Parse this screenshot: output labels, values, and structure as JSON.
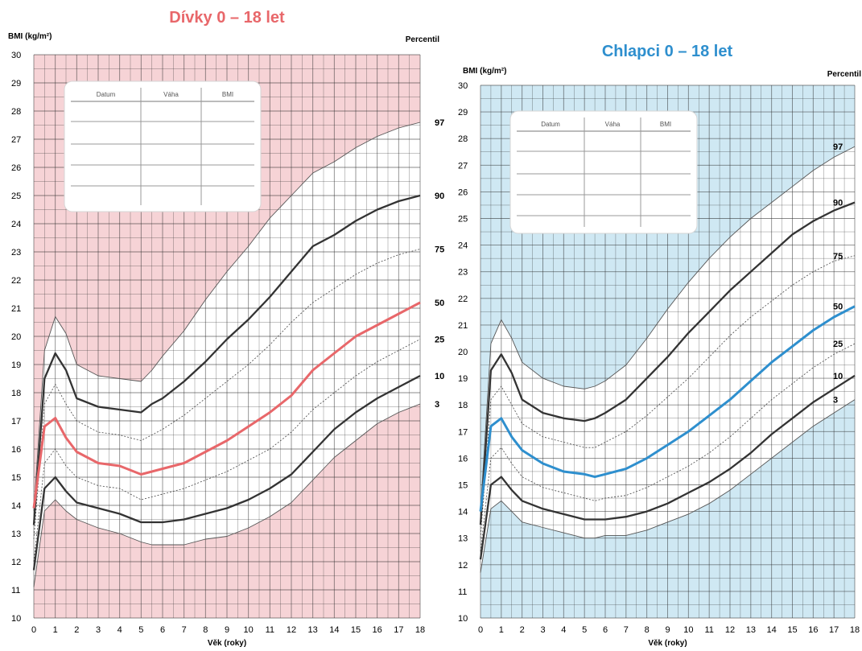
{
  "chart_data": [
    {
      "type": "line",
      "title": "Dívky 0 – 18 let",
      "ylabel": "BMI (kg/m²)",
      "xlabel": "Věk (roky)",
      "percentile_label": "Percentil",
      "xlim": [
        0,
        18
      ],
      "ylim": [
        10,
        30
      ],
      "x_ticks": [
        "0",
        "1",
        "2",
        "3",
        "4",
        "5",
        "6",
        "7",
        "8",
        "9",
        "10",
        "11",
        "12",
        "13",
        "14",
        "15",
        "16",
        "17",
        "18"
      ],
      "y_ticks": [
        "10",
        "11",
        "12",
        "13",
        "14",
        "15",
        "16",
        "17",
        "18",
        "19",
        "20",
        "21",
        "22",
        "23",
        "24",
        "25",
        "26",
        "27",
        "28",
        "29",
        "30"
      ],
      "grid": true,
      "background_color": "#f6d3d6",
      "highlight_color": "#e8676a",
      "table_headers": [
        "Datum",
        "Váha",
        "BMI"
      ],
      "series": [
        {
          "name": "97",
          "x": [
            0,
            0.5,
            1,
            1.5,
            2,
            3,
            4,
            5,
            5.5,
            6,
            7,
            8,
            9,
            10,
            11,
            12,
            13,
            14,
            15,
            16,
            17,
            18
          ],
          "values": [
            13.8,
            19.5,
            20.7,
            20.1,
            19,
            18.6,
            18.5,
            18.4,
            18.8,
            19.3,
            20.2,
            21.3,
            22.3,
            23.2,
            24.2,
            25,
            25.8,
            26.2,
            26.7,
            27.1,
            27.4,
            27.6
          ]
        },
        {
          "name": "90",
          "x": [
            0,
            0.5,
            1,
            1.5,
            2,
            3,
            4,
            5,
            5.5,
            6,
            7,
            8,
            9,
            10,
            11,
            12,
            13,
            14,
            15,
            16,
            17,
            18
          ],
          "values": [
            13.3,
            18.5,
            19.4,
            18.8,
            17.8,
            17.5,
            17.4,
            17.3,
            17.6,
            17.8,
            18.4,
            19.1,
            19.9,
            20.6,
            21.4,
            22.3,
            23.2,
            23.6,
            24.1,
            24.5,
            24.8,
            25
          ]
        },
        {
          "name": "75",
          "x": [
            0,
            0.5,
            1,
            1.5,
            2,
            3,
            4,
            5,
            5.5,
            6,
            7,
            8,
            9,
            10,
            11,
            12,
            13,
            14,
            15,
            16,
            17,
            18
          ],
          "values": [
            12.8,
            17.6,
            18.3,
            17.6,
            17,
            16.6,
            16.5,
            16.3,
            16.5,
            16.7,
            17.2,
            17.8,
            18.4,
            19,
            19.7,
            20.5,
            21.2,
            21.7,
            22.2,
            22.6,
            22.9,
            23.1
          ]
        },
        {
          "name": "50",
          "x": [
            0,
            0.5,
            1,
            1.5,
            2,
            3,
            4,
            5,
            5.5,
            6,
            7,
            8,
            9,
            10,
            11,
            12,
            13,
            14,
            15,
            16,
            17,
            18
          ],
          "values": [
            13.9,
            16.8,
            17.1,
            16.4,
            15.9,
            15.5,
            15.4,
            15.1,
            15.2,
            15.3,
            15.5,
            15.9,
            16.3,
            16.8,
            17.3,
            17.9,
            18.8,
            19.4,
            20,
            20.4,
            20.8,
            21.2
          ]
        },
        {
          "name": "25",
          "x": [
            0,
            0.5,
            1,
            1.5,
            2,
            3,
            4,
            5,
            5.5,
            6,
            7,
            8,
            9,
            10,
            11,
            12,
            13,
            14,
            15,
            16,
            17,
            18
          ],
          "values": [
            12,
            15.5,
            16,
            15.4,
            15,
            14.7,
            14.6,
            14.2,
            14.3,
            14.4,
            14.6,
            14.9,
            15.2,
            15.6,
            16,
            16.6,
            17.4,
            18,
            18.6,
            19.1,
            19.5,
            19.9
          ]
        },
        {
          "name": "10",
          "x": [
            0,
            0.5,
            1,
            1.5,
            2,
            3,
            4,
            5,
            5.5,
            6,
            7,
            8,
            9,
            10,
            11,
            12,
            13,
            14,
            15,
            16,
            17,
            18
          ],
          "values": [
            11.7,
            14.6,
            15,
            14.5,
            14.1,
            13.9,
            13.7,
            13.4,
            13.4,
            13.4,
            13.5,
            13.7,
            13.9,
            14.2,
            14.6,
            15.1,
            15.9,
            16.7,
            17.3,
            17.8,
            18.2,
            18.6
          ]
        },
        {
          "name": "3",
          "x": [
            0,
            0.5,
            1,
            1.5,
            2,
            3,
            4,
            5,
            5.5,
            6,
            7,
            8,
            9,
            10,
            11,
            12,
            13,
            14,
            15,
            16,
            17,
            18
          ],
          "values": [
            11.1,
            13.8,
            14.2,
            13.8,
            13.5,
            13.2,
            13,
            12.7,
            12.6,
            12.6,
            12.6,
            12.8,
            12.9,
            13.2,
            13.6,
            14.1,
            14.9,
            15.7,
            16.3,
            16.9,
            17.3,
            17.6
          ]
        }
      ]
    },
    {
      "type": "line",
      "title": "Chlapci 0 – 18 let",
      "ylabel": "BMI (kg/m²)",
      "xlabel": "Věk (roky)",
      "percentile_label": "Percentil",
      "xlim": [
        0,
        18
      ],
      "ylim": [
        10,
        30
      ],
      "x_ticks": [
        "0",
        "1",
        "2",
        "3",
        "4",
        "5",
        "6",
        "7",
        "8",
        "9",
        "10",
        "11",
        "12",
        "13",
        "14",
        "15",
        "16",
        "17",
        "18"
      ],
      "y_ticks": [
        "10",
        "11",
        "12",
        "13",
        "14",
        "15",
        "16",
        "17",
        "18",
        "19",
        "20",
        "21",
        "22",
        "23",
        "24",
        "25",
        "26",
        "27",
        "28",
        "29",
        "30"
      ],
      "grid": true,
      "background_color": "#cfe8f3",
      "highlight_color": "#2e8fce",
      "table_headers": [
        "Datum",
        "Váha",
        "BMI"
      ],
      "series": [
        {
          "name": "97",
          "x": [
            0,
            0.5,
            1,
            1.5,
            2,
            3,
            4,
            5,
            5.5,
            6,
            7,
            8,
            9,
            10,
            11,
            12,
            13,
            14,
            15,
            16,
            17,
            18
          ],
          "values": [
            14,
            20.3,
            21.2,
            20.5,
            19.6,
            19,
            18.7,
            18.6,
            18.7,
            18.9,
            19.5,
            20.5,
            21.6,
            22.6,
            23.5,
            24.3,
            25,
            25.6,
            26.2,
            26.8,
            27.3,
            27.7
          ]
        },
        {
          "name": "90",
          "x": [
            0,
            0.5,
            1,
            1.5,
            2,
            3,
            4,
            5,
            5.5,
            6,
            7,
            8,
            9,
            10,
            11,
            12,
            13,
            14,
            15,
            16,
            17,
            18
          ],
          "values": [
            13.5,
            19.3,
            19.9,
            19.2,
            18.2,
            17.7,
            17.5,
            17.4,
            17.5,
            17.7,
            18.2,
            19,
            19.8,
            20.7,
            21.5,
            22.3,
            23,
            23.7,
            24.4,
            24.9,
            25.3,
            25.6
          ]
        },
        {
          "name": "75",
          "x": [
            0,
            0.5,
            1,
            1.5,
            2,
            3,
            4,
            5,
            5.5,
            6,
            7,
            8,
            9,
            10,
            11,
            12,
            13,
            14,
            15,
            16,
            17,
            18
          ],
          "values": [
            13,
            18.2,
            18.7,
            18,
            17.3,
            16.8,
            16.6,
            16.4,
            16.4,
            16.6,
            17,
            17.6,
            18.3,
            19,
            19.8,
            20.6,
            21.3,
            21.9,
            22.5,
            23,
            23.4,
            23.6
          ]
        },
        {
          "name": "50",
          "x": [
            0,
            0.5,
            1,
            1.5,
            2,
            3,
            4,
            5,
            5.5,
            6,
            7,
            8,
            9,
            10,
            11,
            12,
            13,
            14,
            15,
            16,
            17,
            18
          ],
          "values": [
            14,
            17.2,
            17.5,
            16.8,
            16.3,
            15.8,
            15.5,
            15.4,
            15.3,
            15.4,
            15.6,
            16,
            16.5,
            17,
            17.6,
            18.2,
            18.9,
            19.6,
            20.2,
            20.8,
            21.3,
            21.7
          ]
        },
        {
          "name": "25",
          "x": [
            0,
            0.5,
            1,
            1.5,
            2,
            3,
            4,
            5,
            5.5,
            6,
            7,
            8,
            9,
            10,
            11,
            12,
            13,
            14,
            15,
            16,
            17,
            18
          ],
          "values": [
            12.5,
            16,
            16.4,
            15.8,
            15.3,
            14.9,
            14.7,
            14.5,
            14.4,
            14.5,
            14.6,
            14.9,
            15.3,
            15.7,
            16.2,
            16.8,
            17.5,
            18.2,
            18.8,
            19.4,
            19.9,
            20.3
          ]
        },
        {
          "name": "10",
          "x": [
            0,
            0.5,
            1,
            1.5,
            2,
            3,
            4,
            5,
            5.5,
            6,
            7,
            8,
            9,
            10,
            11,
            12,
            13,
            14,
            15,
            16,
            17,
            18
          ],
          "values": [
            12.2,
            15,
            15.3,
            14.8,
            14.4,
            14.1,
            13.9,
            13.7,
            13.7,
            13.7,
            13.8,
            14,
            14.3,
            14.7,
            15.1,
            15.6,
            16.2,
            16.9,
            17.5,
            18.1,
            18.6,
            19.1
          ]
        },
        {
          "name": "3",
          "x": [
            0,
            0.5,
            1,
            1.5,
            2,
            3,
            4,
            5,
            5.5,
            6,
            7,
            8,
            9,
            10,
            11,
            12,
            13,
            14,
            15,
            16,
            17,
            18
          ],
          "values": [
            11.7,
            14.1,
            14.4,
            14,
            13.6,
            13.4,
            13.2,
            13,
            13,
            13.1,
            13.1,
            13.3,
            13.6,
            13.9,
            14.3,
            14.8,
            15.4,
            16,
            16.6,
            17.2,
            17.7,
            18.2
          ]
        }
      ]
    }
  ]
}
